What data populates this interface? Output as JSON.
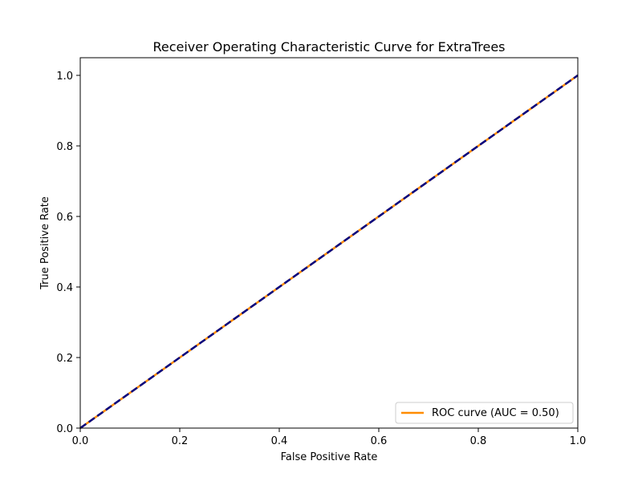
{
  "chart_data": {
    "type": "line",
    "title": "Receiver Operating Characteristic Curve for ExtraTrees",
    "xlabel": "False Positive Rate",
    "ylabel": "True Positive Rate",
    "xlim": [
      0.0,
      1.0
    ],
    "ylim": [
      0.0,
      1.05
    ],
    "xticks": [
      "0.0",
      "0.2",
      "0.4",
      "0.6",
      "0.8",
      "1.0"
    ],
    "yticks": [
      "0.0",
      "0.2",
      "0.4",
      "0.6",
      "0.8",
      "1.0"
    ],
    "grid": false,
    "legend_position": "lower right",
    "series": [
      {
        "name": "ROC curve (AUC = 0.50)",
        "color": "#ff8c00",
        "style": "solid",
        "x": [
          0.0,
          1.0
        ],
        "y": [
          0.0,
          1.0
        ]
      },
      {
        "color": "#000080",
        "style": "dashed",
        "x": [
          0.0,
          1.0
        ],
        "y": [
          0.0,
          1.0
        ]
      }
    ]
  }
}
